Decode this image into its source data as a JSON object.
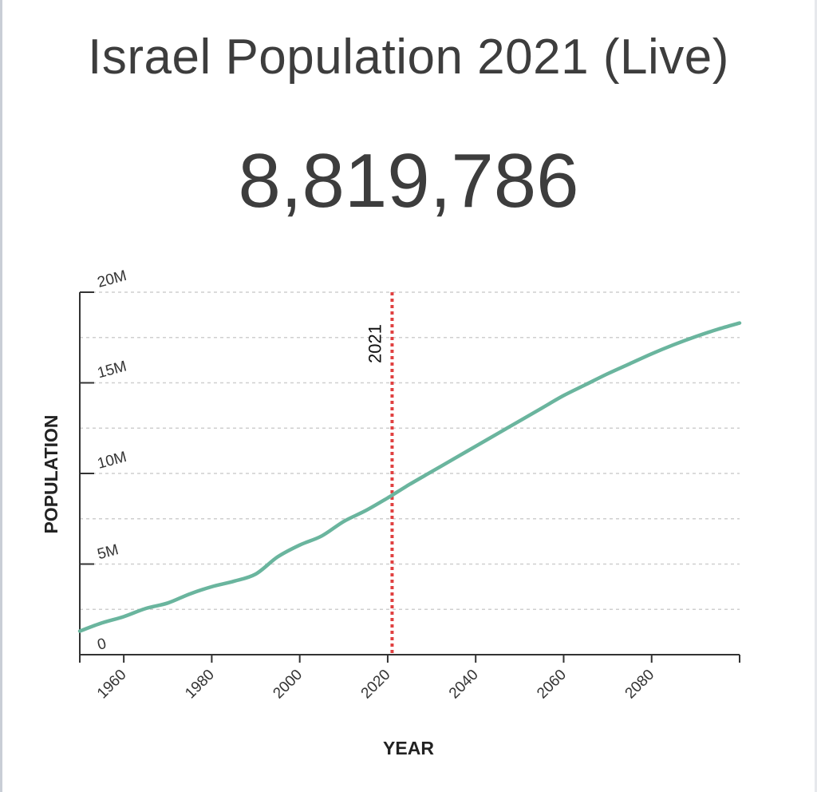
{
  "page": {
    "title": "Israel Population 2021 (Live)",
    "live_count": "8,819,786"
  },
  "chart_data": {
    "type": "line",
    "xlabel": "YEAR",
    "ylabel": "POPULATION",
    "xlim": [
      1950,
      2100
    ],
    "ylim": [
      0,
      20000000
    ],
    "x_ticks": [
      1960,
      1980,
      2000,
      2020,
      2040,
      2060,
      2080
    ],
    "x_tick_labels": [
      "1960",
      "1980",
      "2000",
      "2020",
      "2040",
      "2060",
      "2080"
    ],
    "y_ticks": [
      0,
      5000000,
      10000000,
      15000000,
      20000000
    ],
    "y_tick_labels": [
      "0",
      "5M",
      "10M",
      "15M",
      "20M"
    ],
    "grid": true,
    "line_color": "#6ab59e",
    "marker": {
      "x": 2021,
      "label": "2021",
      "color": "#e04040"
    },
    "series": [
      {
        "x": [
          1950,
          1955,
          1960,
          1965,
          1970,
          1975,
          1980,
          1985,
          1990,
          1995,
          2000,
          2005,
          2010,
          2015,
          2020,
          2021,
          2025,
          2030,
          2035,
          2040,
          2045,
          2050,
          2055,
          2060,
          2065,
          2070,
          2075,
          2080,
          2085,
          2090,
          2095,
          2100
        ],
        "y": [
          1300000,
          1750000,
          2100000,
          2550000,
          2850000,
          3350000,
          3750000,
          4050000,
          4450000,
          5400000,
          6050000,
          6550000,
          7350000,
          7950000,
          8650000,
          8800000,
          9400000,
          10100000,
          10800000,
          11500000,
          12200000,
          12900000,
          13600000,
          14300000,
          14900000,
          15500000,
          16050000,
          16600000,
          17100000,
          17550000,
          17950000,
          18300000
        ]
      }
    ]
  }
}
